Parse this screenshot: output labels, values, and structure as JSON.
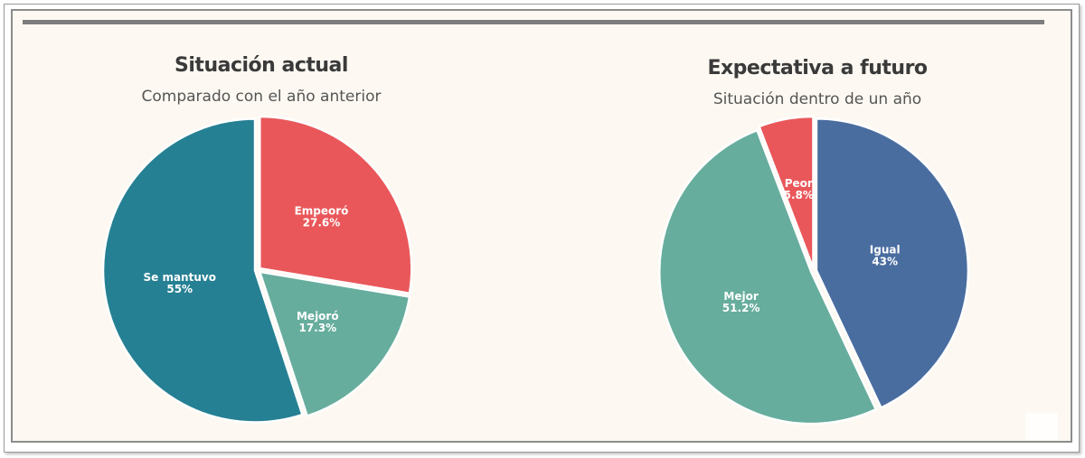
{
  "chart_data": [
    {
      "type": "pie",
      "title": "Situación actual",
      "subtitle": "Comparado con el año anterior",
      "slices": [
        {
          "label": "Empeoró",
          "value": 27.6,
          "display": "27.6%",
          "color": "#e9575a"
        },
        {
          "label": "Mejoró",
          "value": 17.3,
          "display": "17.3%",
          "color": "#67ad9d"
        },
        {
          "label": "Se mantuvo",
          "value": 55,
          "display": "55%",
          "color": "#268093"
        }
      ]
    },
    {
      "type": "pie",
      "title": "Expectativa a futuro",
      "subtitle": "Situación dentro de un año",
      "slices": [
        {
          "label": "Igual",
          "value": 43,
          "display": "43%",
          "color": "#4a6da0"
        },
        {
          "label": "Mejor",
          "value": 51.2,
          "display": "51.2%",
          "color": "#67ad9d"
        },
        {
          "label": "Peor",
          "value": 5.8,
          "display": "5.8%",
          "color": "#e9575a"
        }
      ]
    }
  ],
  "colors": {
    "background": "#fdf9f2",
    "bar": "#7d7d7d",
    "title": "#3a3a3a",
    "subtitle": "#555555"
  }
}
